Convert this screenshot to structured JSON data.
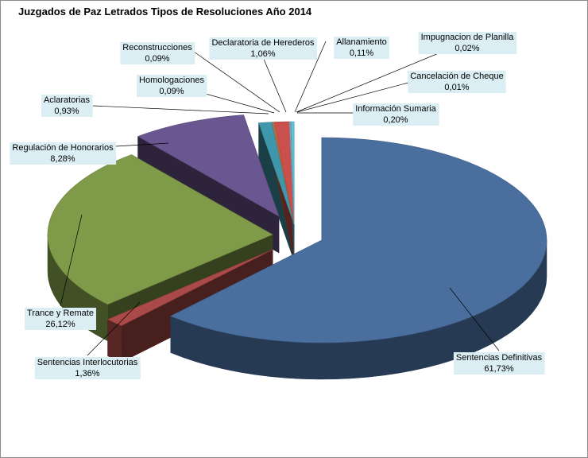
{
  "chart_data": {
    "type": "pie",
    "title": "Juzgados de Paz Letrados Tipos de Resoluciones Año 2014",
    "slices": [
      {
        "label": "Sentencias Definitivas",
        "value": 61.73,
        "value_text": "61,73%",
        "color": "#4a6f9f"
      },
      {
        "label": "Sentencias Interlocutorias",
        "value": 1.36,
        "value_text": "1,36%",
        "color": "#a94a48"
      },
      {
        "label": "Trance y Remate",
        "value": 26.12,
        "value_text": "26,12%",
        "color": "#7f9a48"
      },
      {
        "label": "Regulación de Honorarios",
        "value": 8.28,
        "value_text": "8,28%",
        "color": "#6a5690"
      },
      {
        "label": "Aclaratorias",
        "value": 0.93,
        "value_text": "0,93%",
        "color": "#3e97aa"
      },
      {
        "label": "Homologaciones",
        "value": 0.09,
        "value_text": "0,09%",
        "color": "#7f7f7f"
      },
      {
        "label": "Reconstrucciones",
        "value": 0.09,
        "value_text": "0,09%",
        "color": "#d07a30"
      },
      {
        "label": "Declaratoria de Herederos",
        "value": 1.06,
        "value_text": "1,06%",
        "color": "#c9504c"
      },
      {
        "label": "Allanamiento",
        "value": 0.11,
        "value_text": "0,11%",
        "color": "#8b9dc3"
      },
      {
        "label": "Impugnacion de Planilla",
        "value": 0.02,
        "value_text": "0,02%",
        "color": "#a3b86c"
      },
      {
        "label": "Cancelación de Cheque",
        "value": 0.01,
        "value_text": "0,01%",
        "color": "#9d87b8"
      },
      {
        "label": "Información Sumaria",
        "value": 0.2,
        "value_text": "0,20%",
        "color": "#5fc4d9"
      }
    ]
  }
}
